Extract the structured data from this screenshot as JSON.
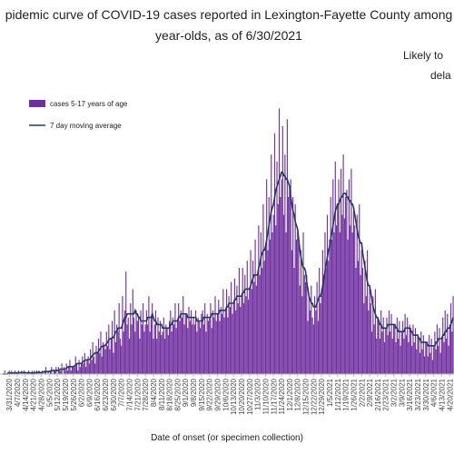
{
  "chart_data": {
    "type": "bar-line",
    "title": [
      "pidemic curve of COVID-19 cases reported in Lexington-Fayette County among",
      "year-olds, as of 6/30/2021"
    ],
    "annotations": [
      "Likely to",
      "dela"
    ],
    "x_label": "Date of onset (or specimen collection)",
    "ylim": [
      0,
      80
    ],
    "legend": "upper left",
    "categories": [
      null,
      null,
      null,
      null,
      null,
      null,
      "3/31/2020",
      null,
      null,
      null,
      null,
      null,
      null,
      "4/7/2020",
      null,
      null,
      null,
      null,
      null,
      null,
      "4/14/2020",
      null,
      null,
      null,
      null,
      null,
      null,
      "4/21/2020",
      null,
      null,
      null,
      null,
      null,
      null,
      "4/28/2020",
      null,
      null,
      null,
      null,
      null,
      null,
      "5/5/2020",
      null,
      null,
      null,
      null,
      null,
      null,
      "5/12/2020",
      null,
      null,
      null,
      null,
      null,
      null,
      "5/19/2020",
      null,
      null,
      null,
      null,
      null,
      null,
      "5/26/2020",
      null,
      null,
      null,
      null,
      null,
      null,
      "6/2/2020",
      null,
      null,
      null,
      null,
      null,
      null,
      "6/9/2020",
      null,
      null,
      null,
      null,
      null,
      null,
      "6/16/2020",
      null,
      null,
      null,
      null,
      null,
      null,
      "6/23/2020",
      null,
      null,
      null,
      null,
      null,
      null,
      "6/30/2020",
      null,
      null,
      null,
      null,
      null,
      null,
      "7/7/2020",
      null,
      null,
      null,
      null,
      null,
      null,
      "7/14/2020",
      null,
      null,
      null,
      null,
      null,
      null,
      "7/21/2020",
      null,
      null,
      null,
      null,
      null,
      null,
      "7/28/2020",
      null,
      null,
      null,
      null,
      null,
      null,
      "8/4/2020",
      null,
      null,
      null,
      null,
      null,
      null,
      "8/11/2020",
      null,
      null,
      null,
      null,
      null,
      null,
      "8/18/2020",
      null,
      null,
      null,
      null,
      null,
      null,
      "8/25/2020",
      null,
      null,
      null,
      null,
      null,
      null,
      "9/1/2020",
      null,
      null,
      null,
      null,
      null,
      null,
      "9/8/2020",
      null,
      null,
      null,
      null,
      null,
      null,
      "9/15/2020",
      null,
      null,
      null,
      null,
      null,
      null,
      "9/22/2020",
      null,
      null,
      null,
      null,
      null,
      null,
      "9/29/2020",
      null,
      null,
      null,
      null,
      null,
      null,
      "10/6/2020",
      null,
      null,
      null,
      null,
      null,
      null,
      "10/13/2020",
      null,
      null,
      null,
      null,
      null,
      null,
      "10/20/2020",
      null,
      null,
      null,
      null,
      null,
      null,
      "10/27/2020",
      null,
      null,
      null,
      null,
      null,
      null,
      "11/3/2020",
      null,
      null,
      null,
      null,
      null,
      null,
      "11/10/2020",
      null,
      null,
      null,
      null,
      null,
      null,
      "11/17/2020",
      null,
      null,
      null,
      null,
      null,
      null,
      "11/24/2020",
      null,
      null,
      null,
      null,
      null,
      null,
      "12/1/2020",
      null,
      null,
      null,
      null,
      null,
      null,
      "12/8/2020",
      null,
      null,
      null,
      null,
      null,
      null,
      "12/15/2020",
      null,
      null,
      null,
      null,
      null,
      null,
      "12/22/2020",
      null,
      null,
      null,
      null,
      null,
      null,
      "12/29/2020",
      null,
      null,
      null,
      null,
      null,
      null,
      "1/5/2021",
      null,
      null,
      null,
      null,
      null,
      null,
      "1/12/2021",
      null,
      null,
      null,
      null,
      null,
      null,
      "1/19/2021",
      null,
      null,
      null,
      null,
      null,
      null,
      "1/26/2021",
      null,
      null,
      null,
      null,
      null,
      null,
      "2/2/2021",
      null,
      null,
      null,
      null,
      null,
      null,
      "2/9/2021",
      null,
      null,
      null,
      null,
      null,
      null,
      "2/16/2021",
      null,
      null,
      null,
      null,
      null,
      null,
      "2/23/2021",
      null,
      null,
      null,
      null,
      null,
      null,
      "3/2/2021",
      null,
      null,
      null,
      null,
      null,
      null,
      "3/9/2021",
      null,
      null,
      null,
      null,
      null,
      null,
      "3/16/2021",
      null,
      null,
      null,
      null,
      null,
      null,
      "3/23/2021",
      null,
      null,
      null,
      null,
      null,
      null,
      "3/30/2021",
      null,
      null,
      null,
      null,
      null,
      null,
      "4/6/2021",
      null,
      null,
      null,
      null,
      null,
      null,
      "4/13/2021",
      null,
      null,
      null,
      null,
      null,
      null,
      "4/20/2021",
      null,
      null,
      null
    ],
    "series": [
      {
        "name": "cases 5-17 years of age",
        "kind": "bar",
        "color": "#7030a0",
        "values": [
          0,
          0,
          1,
          0,
          0,
          0,
          1,
          0,
          1,
          0,
          0,
          1,
          0,
          0,
          1,
          0,
          0,
          1,
          0,
          1,
          0,
          0,
          0,
          1,
          0,
          0,
          1,
          0,
          1,
          0,
          1,
          0,
          1,
          0,
          0,
          1,
          0,
          1,
          2,
          0,
          1,
          0,
          1,
          2,
          0,
          1,
          1,
          2,
          0,
          2,
          1,
          1,
          3,
          0,
          2,
          1,
          3,
          1,
          2,
          4,
          1,
          2,
          2,
          2,
          5,
          3,
          1,
          4,
          2,
          3,
          5,
          3,
          6,
          2,
          4,
          5,
          3,
          7,
          4,
          9,
          5,
          3,
          8,
          6,
          10,
          6,
          12,
          5,
          9,
          8,
          7,
          12,
          8,
          14,
          7,
          10,
          15,
          6,
          18,
          9,
          14,
          12,
          20,
          10,
          8,
          22,
          12,
          18,
          29,
          14,
          16,
          10,
          20,
          14,
          24,
          16,
          12,
          18,
          15,
          16,
          10,
          18,
          14,
          20,
          12,
          14,
          18,
          14,
          22,
          12,
          16,
          20,
          10,
          14,
          18,
          10,
          16,
          12,
          15,
          11,
          12,
          16,
          10,
          14,
          13,
          11,
          15,
          18,
          12,
          16,
          14,
          20,
          13,
          15,
          20,
          15,
          18,
          16,
          22,
          14,
          17,
          17,
          13,
          19,
          15,
          18,
          14,
          16,
          14,
          18,
          12,
          16,
          15,
          13,
          17,
          18,
          14,
          20,
          12,
          17,
          15,
          16,
          20,
          13,
          18,
          16,
          22,
          15,
          17,
          21,
          15,
          19,
          17,
          24,
          16,
          18,
          24,
          16,
          22,
          19,
          26,
          17,
          20,
          27,
          18,
          25,
          20,
          30,
          19,
          22,
          30,
          20,
          28,
          22,
          32,
          21,
          24,
          35,
          24,
          32,
          26,
          38,
          25,
          28,
          42,
          28,
          40,
          30,
          48,
          32,
          36,
          55,
          35,
          50,
          38,
          62,
          40,
          45,
          68,
          42,
          60,
          48,
          75,
          50,
          55,
          70,
          45,
          62,
          40,
          72,
          50,
          52,
          55,
          35,
          50,
          30,
          48,
          38,
          40,
          38,
          25,
          35,
          22,
          40,
          28,
          26,
          28,
          15,
          22,
          18,
          25,
          16,
          14,
          22,
          18,
          26,
          15,
          30,
          20,
          24,
          35,
          28,
          40,
          30,
          45,
          32,
          38,
          50,
          38,
          55,
          40,
          60,
          42,
          48,
          55,
          40,
          58,
          45,
          62,
          44,
          50,
          52,
          38,
          55,
          42,
          58,
          40,
          46,
          42,
          30,
          45,
          32,
          48,
          28,
          35,
          30,
          20,
          32,
          22,
          35,
          18,
          25,
          20,
          12,
          22,
          14,
          24,
          10,
          16,
          15,
          10,
          18,
          12,
          16,
          9,
          13,
          16,
          11,
          18,
          12,
          17,
          10,
          14,
          14,
          9,
          16,
          10,
          15,
          8,
          12,
          15,
          10,
          17,
          11,
          16,
          9,
          14,
          13,
          8,
          14,
          9,
          13,
          7,
          11,
          10,
          6,
          12,
          7,
          11,
          5,
          9,
          9,
          5,
          11,
          6,
          10,
          4,
          8,
          12,
          7,
          14,
          8,
          13,
          6,
          10,
          16,
          9,
          18,
          10,
          17,
          8,
          14,
          20,
          12,
          22
        ]
      },
      {
        "name": "7 day moving average",
        "kind": "line",
        "color": "#1f3864",
        "values": [
          0,
          0,
          0,
          0,
          0,
          0.3,
          0.3,
          0.3,
          0.3,
          0.3,
          0.3,
          0.3,
          0.3,
          0.3,
          0.4,
          0.4,
          0.4,
          0.4,
          0.4,
          0.4,
          0.4,
          0.4,
          0.3,
          0.4,
          0.4,
          0.3,
          0.3,
          0.3,
          0.4,
          0.4,
          0.4,
          0.4,
          0.6,
          0.4,
          0.4,
          0.6,
          0.6,
          0.7,
          0.7,
          0.7,
          0.7,
          0.7,
          0.9,
          1,
          1,
          1,
          1,
          1,
          1,
          1.1,
          1.3,
          1.4,
          1.4,
          1.4,
          1.4,
          1.4,
          1.6,
          2,
          2.1,
          2.1,
          2.1,
          2.1,
          2.1,
          2.3,
          2.6,
          2.9,
          3,
          3,
          3,
          3,
          3.3,
          3.6,
          3.9,
          4,
          4,
          4.1,
          4.1,
          4.4,
          5,
          5.4,
          5.6,
          6,
          6,
          6,
          6.4,
          7,
          7.4,
          7.8,
          8,
          8.1,
          8.1,
          8.6,
          9,
          9.6,
          10,
          10,
          10.3,
          10.3,
          11,
          12,
          12,
          13,
          13,
          13,
          13,
          14,
          15,
          16,
          16,
          17,
          17,
          17,
          17,
          17,
          17,
          17,
          18,
          17,
          17,
          16,
          16,
          15,
          15,
          15,
          15,
          15,
          15,
          16,
          16,
          16,
          16,
          17,
          16,
          15,
          15,
          14,
          14,
          14,
          14,
          14,
          13,
          13,
          13,
          13,
          13,
          13,
          13,
          14,
          14,
          15,
          15,
          15,
          15,
          15,
          16,
          16,
          17,
          17,
          17,
          17,
          17,
          17,
          16,
          16,
          16,
          16,
          16,
          16,
          16,
          16,
          15,
          15,
          15,
          15,
          15,
          15,
          16,
          16,
          16,
          16,
          16,
          16,
          16,
          17,
          17,
          17,
          17,
          17,
          17,
          17,
          18,
          18,
          18,
          18,
          18,
          18,
          19,
          19,
          20,
          20,
          20,
          20,
          20,
          21,
          21,
          22,
          22,
          22,
          22,
          22,
          23,
          23,
          24,
          24,
          24,
          24,
          24,
          25,
          26,
          27,
          28,
          28,
          28,
          28,
          30,
          31,
          33,
          34,
          35,
          35,
          36,
          38,
          40,
          42,
          44,
          46,
          47,
          48,
          50,
          52,
          53,
          54,
          55,
          56,
          57,
          57,
          56,
          56,
          55,
          55,
          54,
          53,
          50,
          48,
          46,
          45,
          43,
          42,
          41,
          38,
          35,
          33,
          31,
          30,
          30,
          29,
          26,
          24,
          22,
          21,
          20,
          20,
          19,
          19,
          19,
          20,
          21,
          22,
          22,
          23,
          25,
          27,
          29,
          31,
          33,
          35,
          36,
          38,
          40,
          42,
          44,
          46,
          47,
          48,
          48,
          49,
          50,
          50,
          51,
          51,
          51,
          50,
          50,
          49,
          49,
          48,
          48,
          47,
          45,
          43,
          41,
          39,
          38,
          37,
          37,
          34,
          32,
          30,
          28,
          26,
          25,
          25,
          23,
          21,
          19,
          18,
          17,
          16,
          16,
          15,
          14,
          14,
          13,
          13,
          13,
          13,
          13,
          14,
          14,
          14,
          14,
          14,
          14,
          14,
          13,
          13,
          12,
          12,
          12,
          12,
          12,
          12,
          13,
          13,
          13,
          13,
          13,
          12,
          12,
          11,
          11,
          11,
          11,
          11,
          10,
          10,
          9,
          9,
          9,
          9,
          9,
          9,
          8,
          8,
          8,
          8,
          8,
          8,
          8,
          9,
          9,
          10,
          10,
          10,
          10,
          11,
          11,
          12,
          12,
          13,
          13,
          13,
          14,
          15,
          16
        ]
      }
    ]
  }
}
